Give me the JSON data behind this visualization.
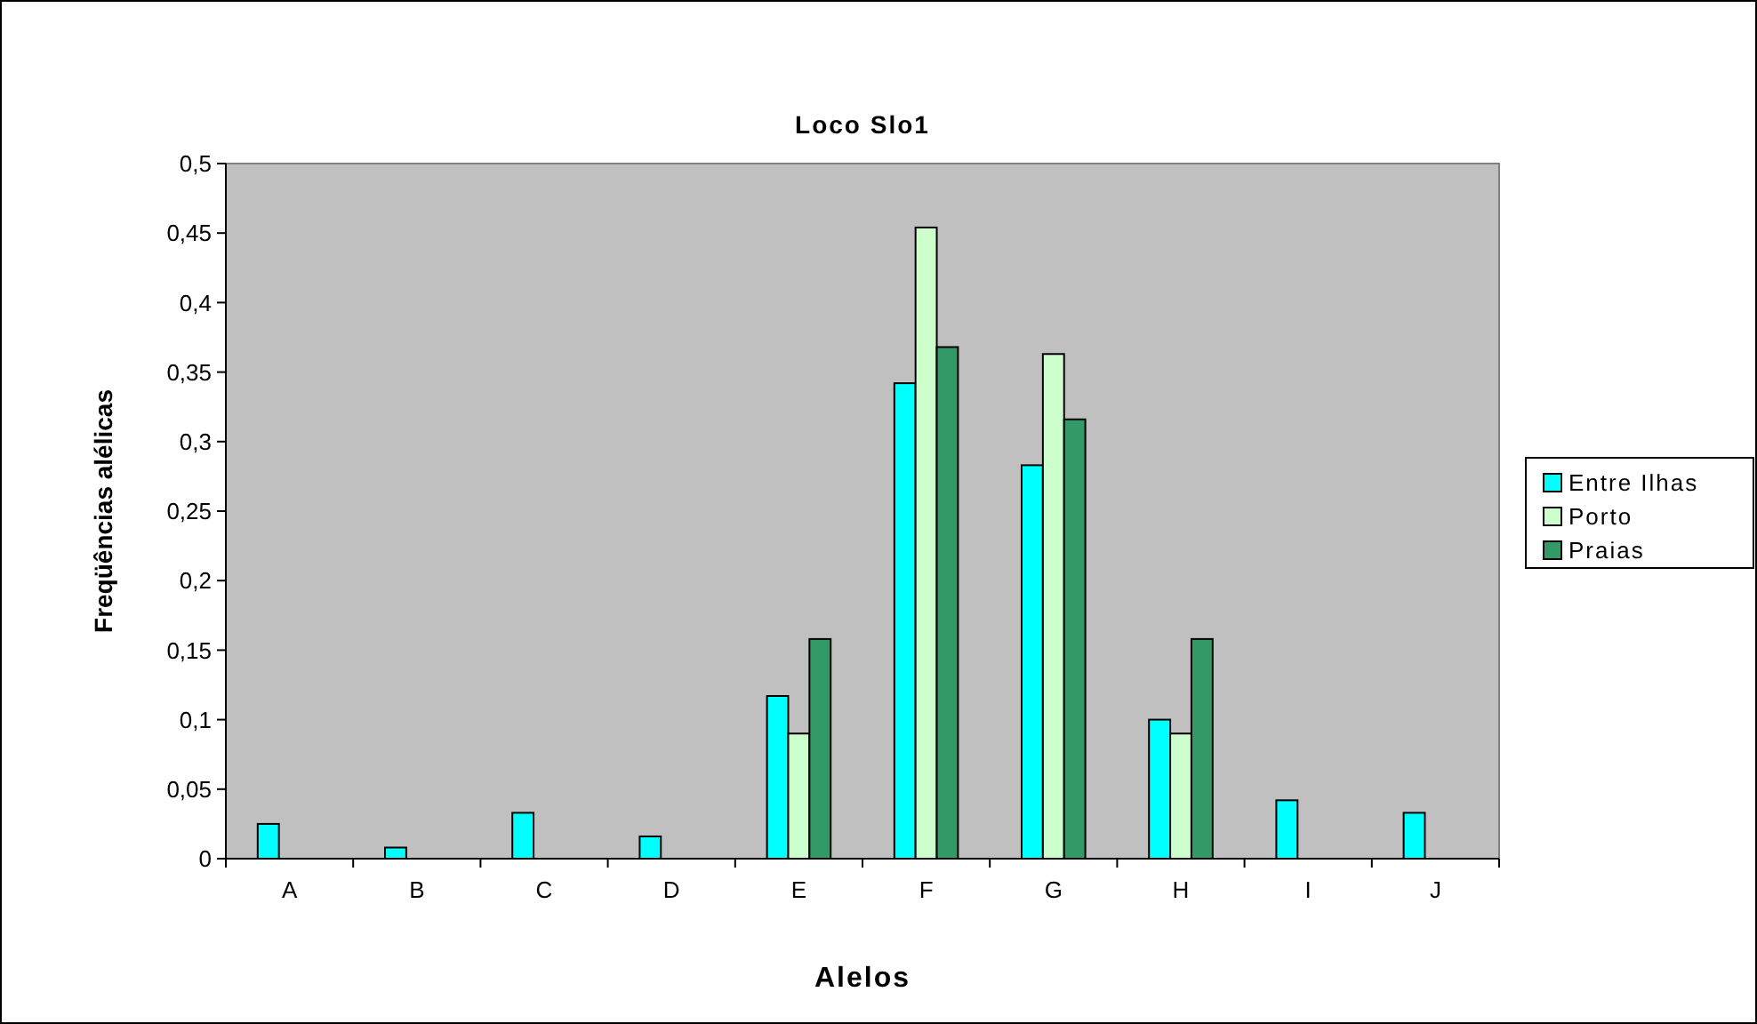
{
  "chart_data": {
    "type": "bar",
    "title": "Loco Slo1",
    "xlabel": "Alelos",
    "ylabel": "Freqüências alélicas",
    "categories": [
      "A",
      "B",
      "C",
      "D",
      "E",
      "F",
      "G",
      "H",
      "I",
      "J"
    ],
    "series": [
      {
        "name": "Entre Ilhas",
        "color": "#00ffff",
        "values": [
          0.025,
          0.008,
          0.033,
          0.016,
          0.117,
          0.342,
          0.283,
          0.1,
          0.042,
          0.033
        ]
      },
      {
        "name": "Porto",
        "color": "#ccffcc",
        "values": [
          null,
          null,
          null,
          null,
          0.09,
          0.454,
          0.363,
          0.09,
          null,
          null
        ]
      },
      {
        "name": "Praias",
        "color": "#339966",
        "values": [
          null,
          null,
          null,
          null,
          0.158,
          0.368,
          0.316,
          0.158,
          null,
          null
        ]
      }
    ],
    "ylim": [
      0,
      0.5
    ],
    "yticks": [
      {
        "value": 0,
        "label": "0"
      },
      {
        "value": 0.05,
        "label": "0,05"
      },
      {
        "value": 0.1,
        "label": "0,1"
      },
      {
        "value": 0.15,
        "label": "0,15"
      },
      {
        "value": 0.2,
        "label": "0,2"
      },
      {
        "value": 0.25,
        "label": "0,25"
      },
      {
        "value": 0.3,
        "label": "0,3"
      },
      {
        "value": 0.35,
        "label": "0,35"
      },
      {
        "value": 0.4,
        "label": "0,4"
      },
      {
        "value": 0.45,
        "label": "0,45"
      },
      {
        "value": 0.5,
        "label": "0,5"
      }
    ],
    "grid": false,
    "legend": "right"
  }
}
